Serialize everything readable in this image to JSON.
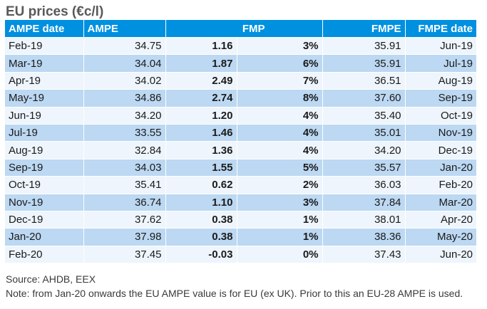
{
  "title": "EU prices (€c/l)",
  "columns": [
    "AMPE date",
    "AMPE",
    "FMP",
    "",
    "FMPE",
    "FMPE date"
  ],
  "rows": [
    [
      "Feb-19",
      "34.75",
      "1.16",
      "3%",
      "35.91",
      "Jun-19"
    ],
    [
      "Mar-19",
      "34.04",
      "1.87",
      "6%",
      "35.91",
      "Jul-19"
    ],
    [
      "Apr-19",
      "34.02",
      "2.49",
      "7%",
      "36.51",
      "Aug-19"
    ],
    [
      "May-19",
      "34.86",
      "2.74",
      "8%",
      "37.60",
      "Sep-19"
    ],
    [
      "Jun-19",
      "34.20",
      "1.20",
      "4%",
      "35.40",
      "Oct-19"
    ],
    [
      "Jul-19",
      "33.55",
      "1.46",
      "4%",
      "35.01",
      "Nov-19"
    ],
    [
      "Aug-19",
      "32.84",
      "1.36",
      "4%",
      "34.20",
      "Dec-19"
    ],
    [
      "Sep-19",
      "34.03",
      "1.55",
      "5%",
      "35.57",
      "Jan-20"
    ],
    [
      "Oct-19",
      "35.41",
      "0.62",
      "2%",
      "36.03",
      "Feb-20"
    ],
    [
      "Nov-19",
      "36.74",
      "1.10",
      "3%",
      "37.84",
      "Mar-20"
    ],
    [
      "Dec-19",
      "37.62",
      "0.38",
      "1%",
      "38.01",
      "Apr-20"
    ],
    [
      "Jan-20",
      "37.98",
      "0.38",
      "1%",
      "38.36",
      "May-20"
    ],
    [
      "Feb-20",
      "37.45",
      "-0.03",
      "0%",
      "37.43",
      "Jun-20"
    ]
  ],
  "source": "Source: AHDB, EEX",
  "note": "Note: from Jan-20 onwards the EU AMPE value is for EU (ex UK). Prior to this an EU-28 AMPE is used.",
  "colors": {
    "header_bg": "#0090e0",
    "row_light": "#eef5fc",
    "row_dark": "#bcd8f2",
    "title": "#595959"
  }
}
